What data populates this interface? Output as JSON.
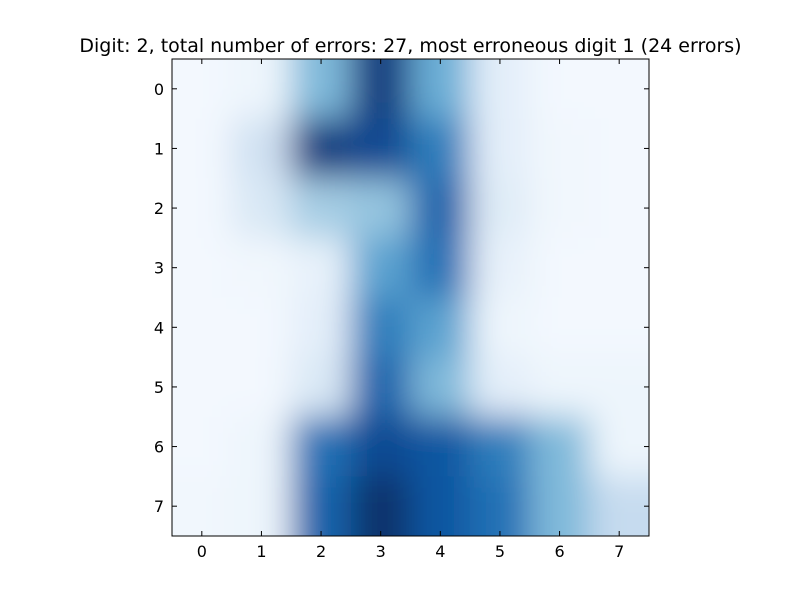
{
  "chart_data": {
    "type": "heatmap",
    "title": "Digit: 2, total number of errors: 27, most erroneous digit 1 (24 errors)",
    "xlabel": "",
    "ylabel": "",
    "x_ticks": [
      "0",
      "1",
      "2",
      "3",
      "4",
      "5",
      "6",
      "7"
    ],
    "y_ticks": [
      "0",
      "1",
      "2",
      "3",
      "4",
      "5",
      "6",
      "7"
    ],
    "xlim": [
      -0.5,
      7.5
    ],
    "ylim": [
      7.5,
      -0.5
    ],
    "colormap": "Blues",
    "interpolation": "smooth",
    "grid": false,
    "values": [
      [
        0.02,
        0.05,
        0.45,
        0.95,
        0.5,
        0.1,
        0.02,
        0.02
      ],
      [
        0.02,
        0.2,
        0.95,
        0.9,
        0.7,
        0.1,
        0.03,
        0.02
      ],
      [
        0.02,
        0.15,
        0.35,
        0.4,
        0.8,
        0.12,
        0.03,
        0.02
      ],
      [
        0.02,
        0.03,
        0.08,
        0.55,
        0.75,
        0.08,
        0.02,
        0.02
      ],
      [
        0.02,
        0.02,
        0.1,
        0.7,
        0.55,
        0.05,
        0.02,
        0.02
      ],
      [
        0.02,
        0.02,
        0.15,
        0.8,
        0.45,
        0.1,
        0.05,
        0.05
      ],
      [
        0.02,
        0.05,
        0.75,
        0.9,
        0.85,
        0.7,
        0.45,
        0.05
      ],
      [
        0.03,
        0.05,
        0.8,
        1.0,
        0.85,
        0.75,
        0.45,
        0.25
      ]
    ]
  }
}
